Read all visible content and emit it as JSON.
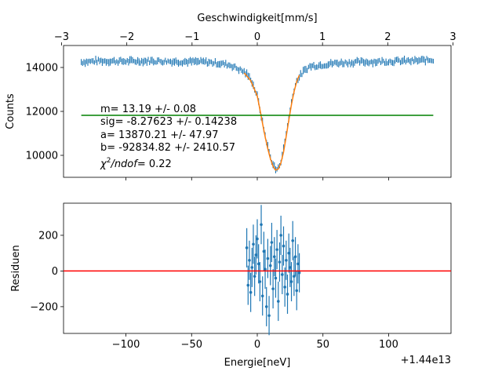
{
  "colors": {
    "data": "#1f77b4",
    "fit": "#ff7f0e",
    "baseline": "#008000",
    "zero_line": "#ff0000"
  },
  "chart_data": [
    {
      "type": "scatter",
      "panel": "top",
      "title": "",
      "xlabel_top": "Geschwindigkeit[mm/s]",
      "ylabel": "Counts",
      "xlim": [
        -147.5,
        147.5
      ],
      "ylim": [
        9000,
        15000
      ],
      "xlim_top": [
        -2.97,
        2.97
      ],
      "xticks_top": [
        -3,
        -2,
        -1,
        0,
        1,
        2,
        3
      ],
      "xticklabels_top": [
        "−3",
        "−2",
        "−1",
        "0",
        "1",
        "2",
        "3"
      ],
      "yticks": [
        10000,
        12000,
        14000
      ],
      "yticklabels": [
        "10000",
        "12000",
        "14000"
      ],
      "grid": false,
      "series": [
        {
          "style": "errorbar",
          "x_range": [
            -134,
            134
          ],
          "points_x": [
            -134,
            -120,
            -100,
            -80,
            -60,
            -40,
            -30,
            -20,
            -10,
            -5,
            0,
            2,
            4,
            6,
            8,
            10,
            12,
            14,
            16,
            18,
            20,
            22,
            24,
            26,
            28,
            30,
            35,
            40,
            60,
            80,
            100,
            120,
            134
          ],
          "points_y": [
            14250,
            14300,
            14280,
            14300,
            14270,
            14250,
            14200,
            14100,
            13800,
            13500,
            12700,
            12100,
            11500,
            10900,
            10400,
            9900,
            9600,
            9350,
            9400,
            9750,
            10300,
            11000,
            11700,
            12400,
            13000,
            13400,
            13800,
            14050,
            14200,
            14250,
            14280,
            14300,
            14350
          ],
          "yerr": 120
        },
        {
          "style": "line",
          "color_key": "fit",
          "x": [
            -10,
            -5,
            0,
            2,
            4,
            6,
            8,
            10,
            12,
            14,
            16,
            18,
            20,
            22,
            24,
            26,
            28,
            30,
            32
          ],
          "y": [
            13750,
            13400,
            12700,
            12100,
            11450,
            10850,
            10300,
            9850,
            9500,
            9330,
            9380,
            9650,
            10150,
            10850,
            11600,
            12300,
            12900,
            13350,
            13650
          ]
        },
        {
          "style": "line",
          "color_key": "baseline",
          "x": [
            -134,
            134
          ],
          "y": [
            11820,
            11820
          ]
        }
      ],
      "annotations": [
        "m= 13.19 +/- 0.08",
        "sig= -8.27623 +/- 0.14238",
        "a= 13870.21 +/- 47.97",
        "b= -92834.82 +/- 2410.57"
      ],
      "chi_label": {
        "prefix": "χ",
        "sup": "2",
        "over": "/ndof",
        "value": "= 0.22"
      }
    },
    {
      "type": "scatter",
      "panel": "bottom",
      "title": "",
      "xlabel": "Energie[neV]",
      "ylabel": "Residuen",
      "offset_label": "+1.44e13",
      "xlim": [
        -147.5,
        147.5
      ],
      "ylim": [
        -350,
        380
      ],
      "xticks": [
        -100,
        -50,
        0,
        50,
        100
      ],
      "xticklabels": [
        "−100",
        "−50",
        "0",
        "50",
        "100"
      ],
      "yticks": [
        -200,
        0,
        200
      ],
      "yticklabels": [
        "−200",
        "0",
        "200"
      ],
      "grid": false,
      "series": [
        {
          "style": "errorbar",
          "x": [
            -8,
            -7,
            -6,
            -5,
            -4,
            -3,
            -2,
            -1,
            0,
            1,
            2,
            3,
            4,
            5,
            6,
            7,
            8,
            9,
            10,
            11,
            12,
            13,
            14,
            15,
            16,
            17,
            18,
            19,
            20,
            21,
            22,
            23,
            24,
            25,
            26,
            27,
            28,
            29,
            30,
            31,
            32
          ],
          "y": [
            130,
            -80,
            60,
            -120,
            20,
            150,
            -30,
            90,
            180,
            40,
            -60,
            260,
            -140,
            110,
            10,
            -200,
            70,
            -250,
            30,
            160,
            -100,
            80,
            -40,
            120,
            -170,
            50,
            200,
            -20,
            140,
            -90,
            60,
            -130,
            100,
            20,
            -60,
            170,
            -30,
            80,
            -110,
            40,
            -10
          ],
          "yerr": 110
        },
        {
          "style": "line",
          "color_key": "zero_line",
          "x": [
            -147.5,
            147.5
          ],
          "y": [
            0,
            0
          ]
        }
      ]
    }
  ]
}
